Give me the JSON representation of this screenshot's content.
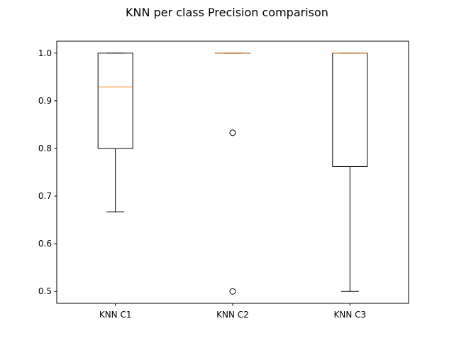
{
  "chart_data": {
    "type": "boxplot",
    "title": "KNN per class Precision comparison",
    "xlabel": "",
    "ylabel": "",
    "ylim": [
      0.475,
      1.025
    ],
    "yticks": [
      0.5,
      0.6,
      0.7,
      0.8,
      0.9,
      1.0
    ],
    "ytick_labels": [
      "0.5",
      "0.6",
      "0.7",
      "0.8",
      "0.9",
      "1.0"
    ],
    "categories": [
      "KNN C1",
      "KNN C2",
      "KNN C3"
    ],
    "boxes": [
      {
        "category": "KNN C1",
        "whisker_low": 0.667,
        "q1": 0.8,
        "median": 0.929,
        "q3": 1.0,
        "whisker_high": 1.0,
        "outliers": []
      },
      {
        "category": "KNN C2",
        "whisker_low": 1.0,
        "q1": 1.0,
        "median": 1.0,
        "q3": 1.0,
        "whisker_high": 1.0,
        "outliers": [
          0.833,
          0.5
        ]
      },
      {
        "category": "KNN C3",
        "whisker_low": 0.5,
        "q1": 0.762,
        "median": 1.0,
        "q3": 1.0,
        "whisker_high": 1.0,
        "outliers": []
      }
    ],
    "grid": false,
    "colors": {
      "box": "#000000",
      "median": "#ff7f0e",
      "axes": "#000000"
    }
  }
}
